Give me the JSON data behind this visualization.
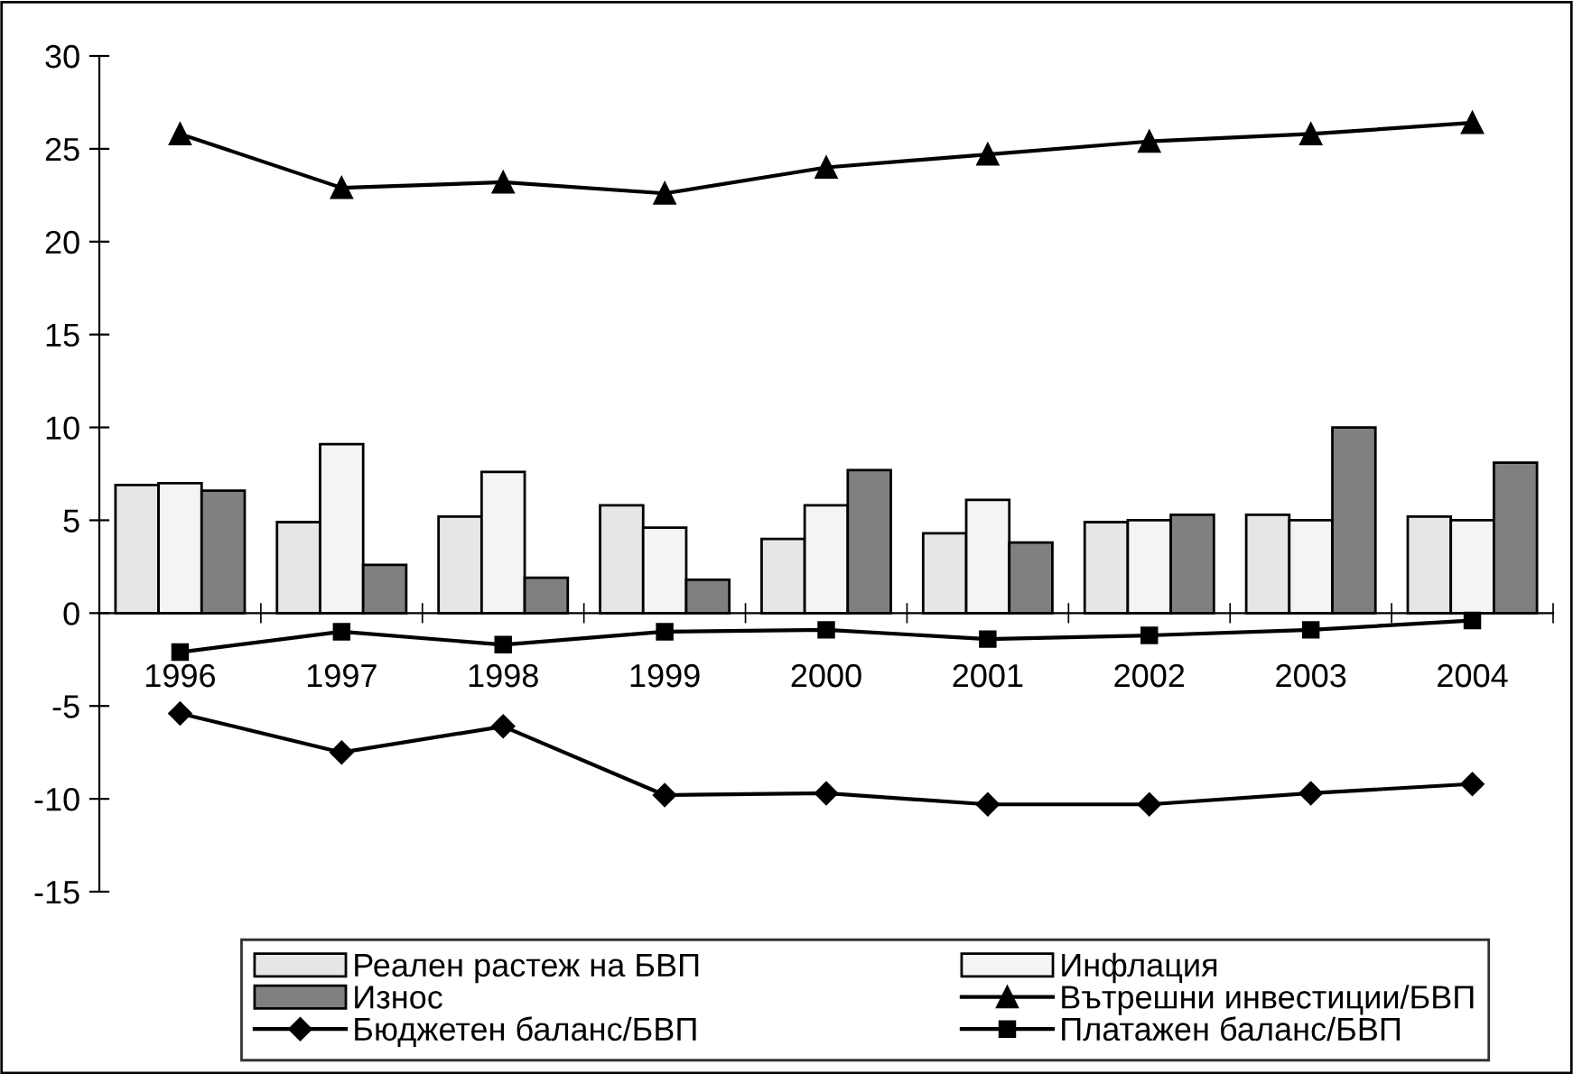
{
  "chart_data": {
    "type": "bar",
    "categories": [
      "1996",
      "1997",
      "1998",
      "1999",
      "2000",
      "2001",
      "2002",
      "2003",
      "2004"
    ],
    "series": [
      {
        "name": "Реален растеж на БВП",
        "color": "#e6e6e6",
        "values": [
          6.9,
          4.9,
          5.2,
          5.8,
          4.0,
          4.3,
          4.9,
          5.3,
          5.2
        ]
      },
      {
        "name": "Инфлация",
        "color": "#f4f4f4",
        "values": [
          7.0,
          9.1,
          7.6,
          4.6,
          5.8,
          6.1,
          5.0,
          5.0,
          5.0
        ]
      },
      {
        "name": "Износ",
        "color": "#808080",
        "values": [
          6.6,
          2.6,
          1.9,
          1.8,
          7.7,
          3.8,
          5.3,
          10.0,
          8.1
        ]
      },
      {
        "name": "Вътрешни инвестиции/БВП",
        "type": "line",
        "marker": "triangle",
        "color": "#000000",
        "values": [
          25.8,
          22.9,
          23.2,
          22.6,
          24.0,
          24.7,
          25.4,
          25.8,
          26.4
        ]
      },
      {
        "name": "Бюджетен баланс/БВП",
        "type": "line",
        "marker": "diamond",
        "color": "#000000",
        "values": [
          -5.4,
          -7.5,
          -6.1,
          -9.8,
          -9.7,
          -10.3,
          -10.3,
          -9.7,
          -9.2
        ]
      },
      {
        "name": "Платажен баланс/БВП",
        "type": "line",
        "marker": "square",
        "color": "#000000",
        "values": [
          -2.1,
          -1.0,
          -1.7,
          -1.0,
          -0.9,
          -1.4,
          -1.2,
          -0.9,
          -0.4
        ]
      }
    ],
    "ylim": [
      -15,
      30
    ],
    "yticks": [
      -15,
      -10,
      -5,
      0,
      5,
      10,
      15,
      20,
      25,
      30
    ],
    "grid": false,
    "legend": "bottom",
    "line_style": "solid"
  }
}
